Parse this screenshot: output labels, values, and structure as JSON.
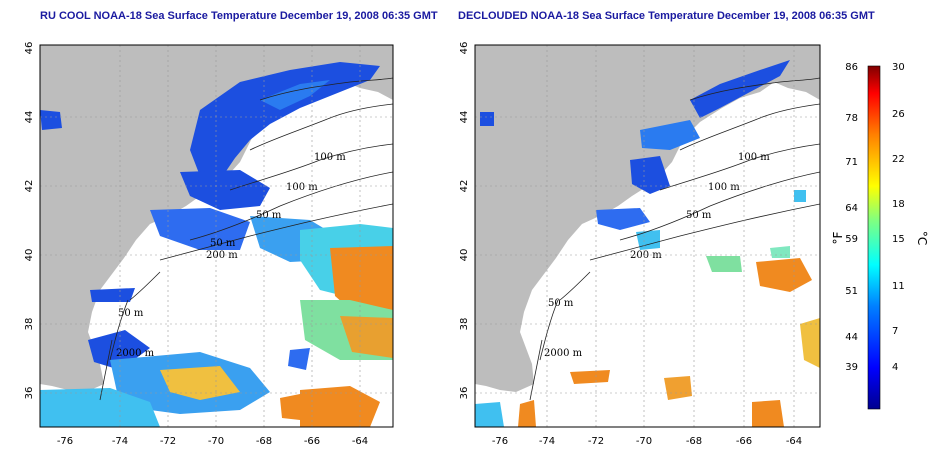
{
  "titles": {
    "left": "RU COOL NOAA-18 Sea Surface Temperature December 19, 2008 06:35 GMT",
    "right": "DECLOUDED NOAA-18 Sea Surface Temperature December 19, 2008 06:35 GMT"
  },
  "axes": {
    "x_ticks": [
      "-76",
      "-74",
      "-72",
      "-70",
      "-68",
      "-66",
      "-64"
    ],
    "y_ticks": [
      "46",
      "44",
      "42",
      "40",
      "38",
      "36"
    ]
  },
  "contour_labels": {
    "left": [
      "100 m",
      "100 m",
      "50 m",
      "50 m",
      "200 m",
      "50 m",
      "2000 m"
    ],
    "right": [
      "100 m",
      "100 m",
      "50 m",
      "200 m",
      "50 m",
      "2000 m"
    ]
  },
  "colorbar": {
    "f_label": "°F",
    "c_label": "°C",
    "f_ticks": [
      "86",
      "78",
      "71",
      "64",
      "59",
      "51",
      "44",
      "39"
    ],
    "c_ticks": [
      "30",
      "26",
      "22",
      "18",
      "15",
      "11",
      "7",
      "4"
    ]
  },
  "colors": {
    "land": "#bdbdbd",
    "cloud": "#ffffff",
    "title": "#1a1aa0"
  }
}
